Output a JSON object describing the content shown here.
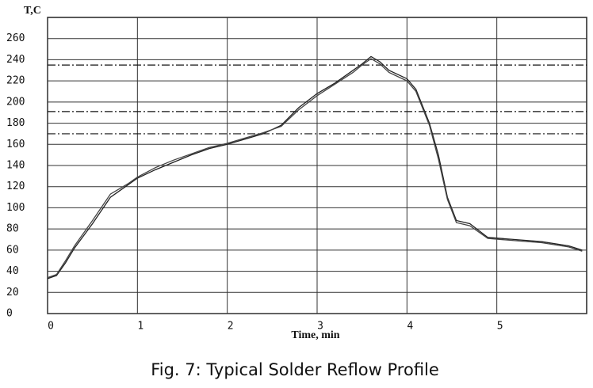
{
  "chart_data": {
    "type": "line",
    "caption": "Fig. 7: Typical Solder Reflow Profile",
    "y_label": "T,C",
    "x_label": "Time, min",
    "x": [
      0,
      0.1,
      0.2,
      0.3,
      0.5,
      0.7,
      0.9,
      1.0,
      1.2,
      1.4,
      1.6,
      1.8,
      2.0,
      2.2,
      2.4,
      2.6,
      2.8,
      3.0,
      3.2,
      3.4,
      3.5,
      3.6,
      3.7,
      3.8,
      4.0,
      4.1,
      4.25,
      4.35,
      4.45,
      4.55,
      4.7,
      4.9,
      5.2,
      5.5,
      5.8,
      5.95
    ],
    "series": [
      {
        "color": "#222222",
        "values": [
          33,
          36,
          48,
          62,
          85,
          110,
          122,
          128,
          136,
          143,
          150,
          156,
          160,
          165,
          170,
          178,
          195,
          208,
          218,
          230,
          236,
          243,
          238,
          230,
          222,
          212,
          180,
          150,
          110,
          88,
          85,
          72,
          70,
          68,
          64,
          60
        ]
      },
      {
        "color": "#444444",
        "values": [
          34,
          37,
          50,
          64,
          88,
          113,
          123,
          129,
          138,
          145,
          151,
          157,
          161,
          166,
          171,
          177,
          193,
          206,
          217,
          228,
          235,
          241,
          236,
          228,
          220,
          210,
          178,
          146,
          108,
          86,
          83,
          71,
          69,
          67,
          63,
          59
        ]
      }
    ],
    "reference_lines": [
      235,
      191,
      170
    ],
    "xlim": [
      0,
      6
    ],
    "xticks": [
      0,
      1,
      2,
      3,
      4,
      5
    ],
    "ylim": [
      0,
      280
    ],
    "yticks": [
      0,
      20,
      40,
      60,
      80,
      100,
      120,
      140,
      160,
      180,
      200,
      220,
      240,
      260
    ],
    "grid": true
  }
}
